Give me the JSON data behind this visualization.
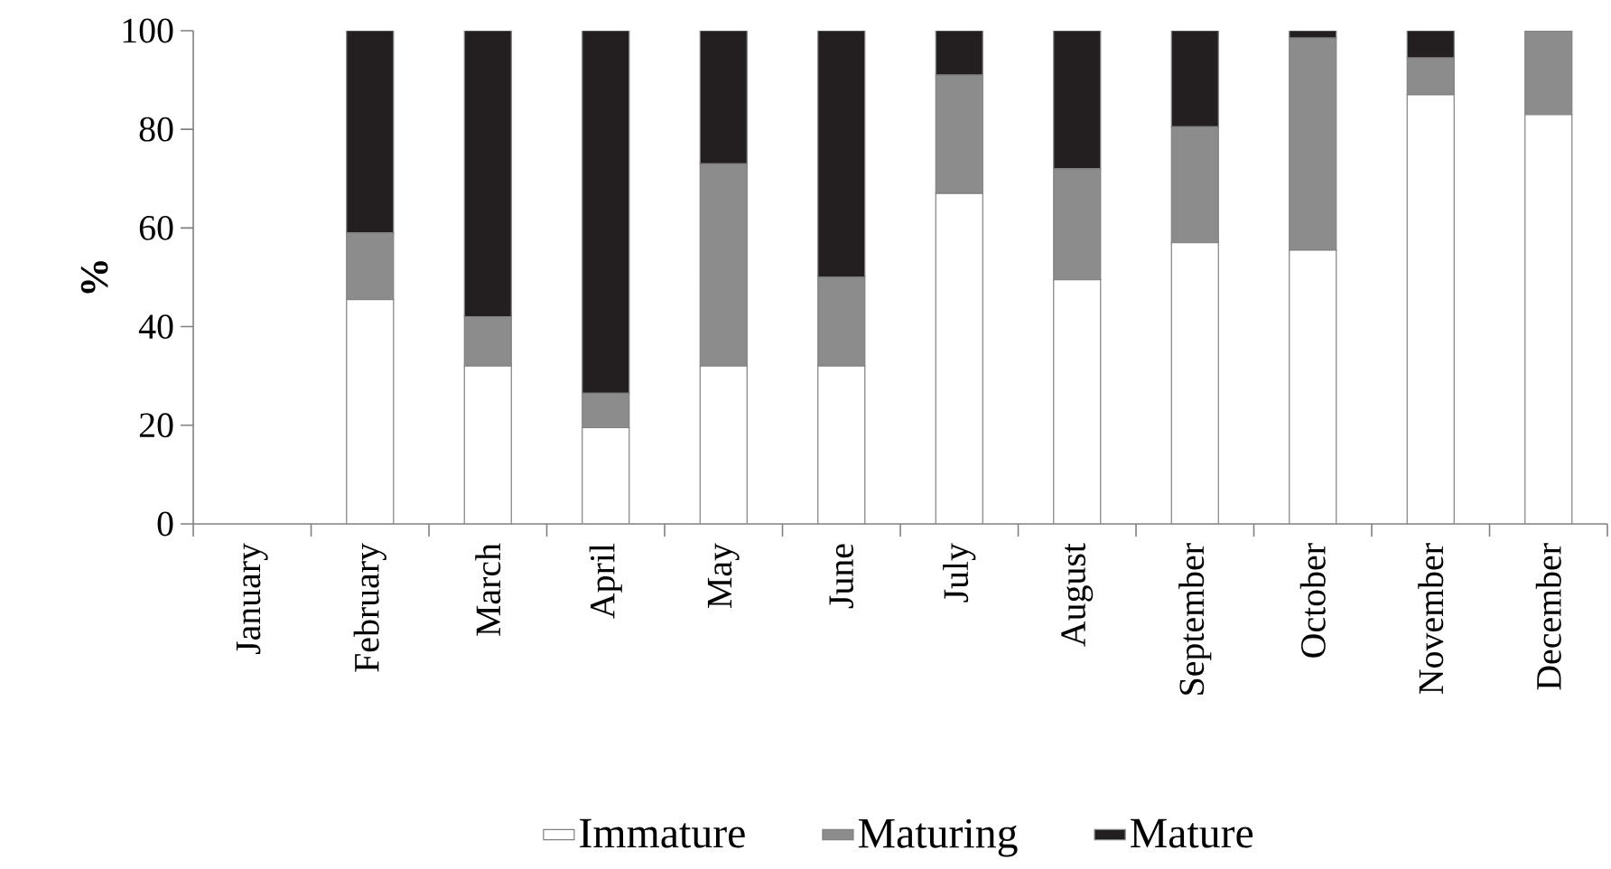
{
  "chart_data": {
    "type": "bar",
    "stacked": true,
    "ylabel": "%",
    "categories": [
      "January",
      "February",
      "March",
      "April",
      "May",
      "June",
      "July",
      "August",
      "September",
      "October",
      "November",
      "December"
    ],
    "series": [
      {
        "name": "Immature",
        "color": "#ffffff",
        "values": [
          null,
          45.5,
          32,
          19.5,
          32,
          32,
          67,
          49.5,
          57,
          55.5,
          87,
          83
        ]
      },
      {
        "name": "Maturing",
        "color": "#8c8c8c",
        "values": [
          null,
          13.5,
          10,
          7,
          41,
          18,
          24,
          22.5,
          23.5,
          43,
          7.5,
          17
        ]
      },
      {
        "name": "Mature",
        "color": "#231f20",
        "values": [
          null,
          41,
          58,
          73.5,
          27,
          50,
          9,
          28,
          19.5,
          1.5,
          5.5,
          0
        ]
      }
    ],
    "ylim": [
      0,
      100
    ],
    "yticks": [
      0,
      20,
      40,
      60,
      80,
      100
    ],
    "legend": "bottom"
  }
}
